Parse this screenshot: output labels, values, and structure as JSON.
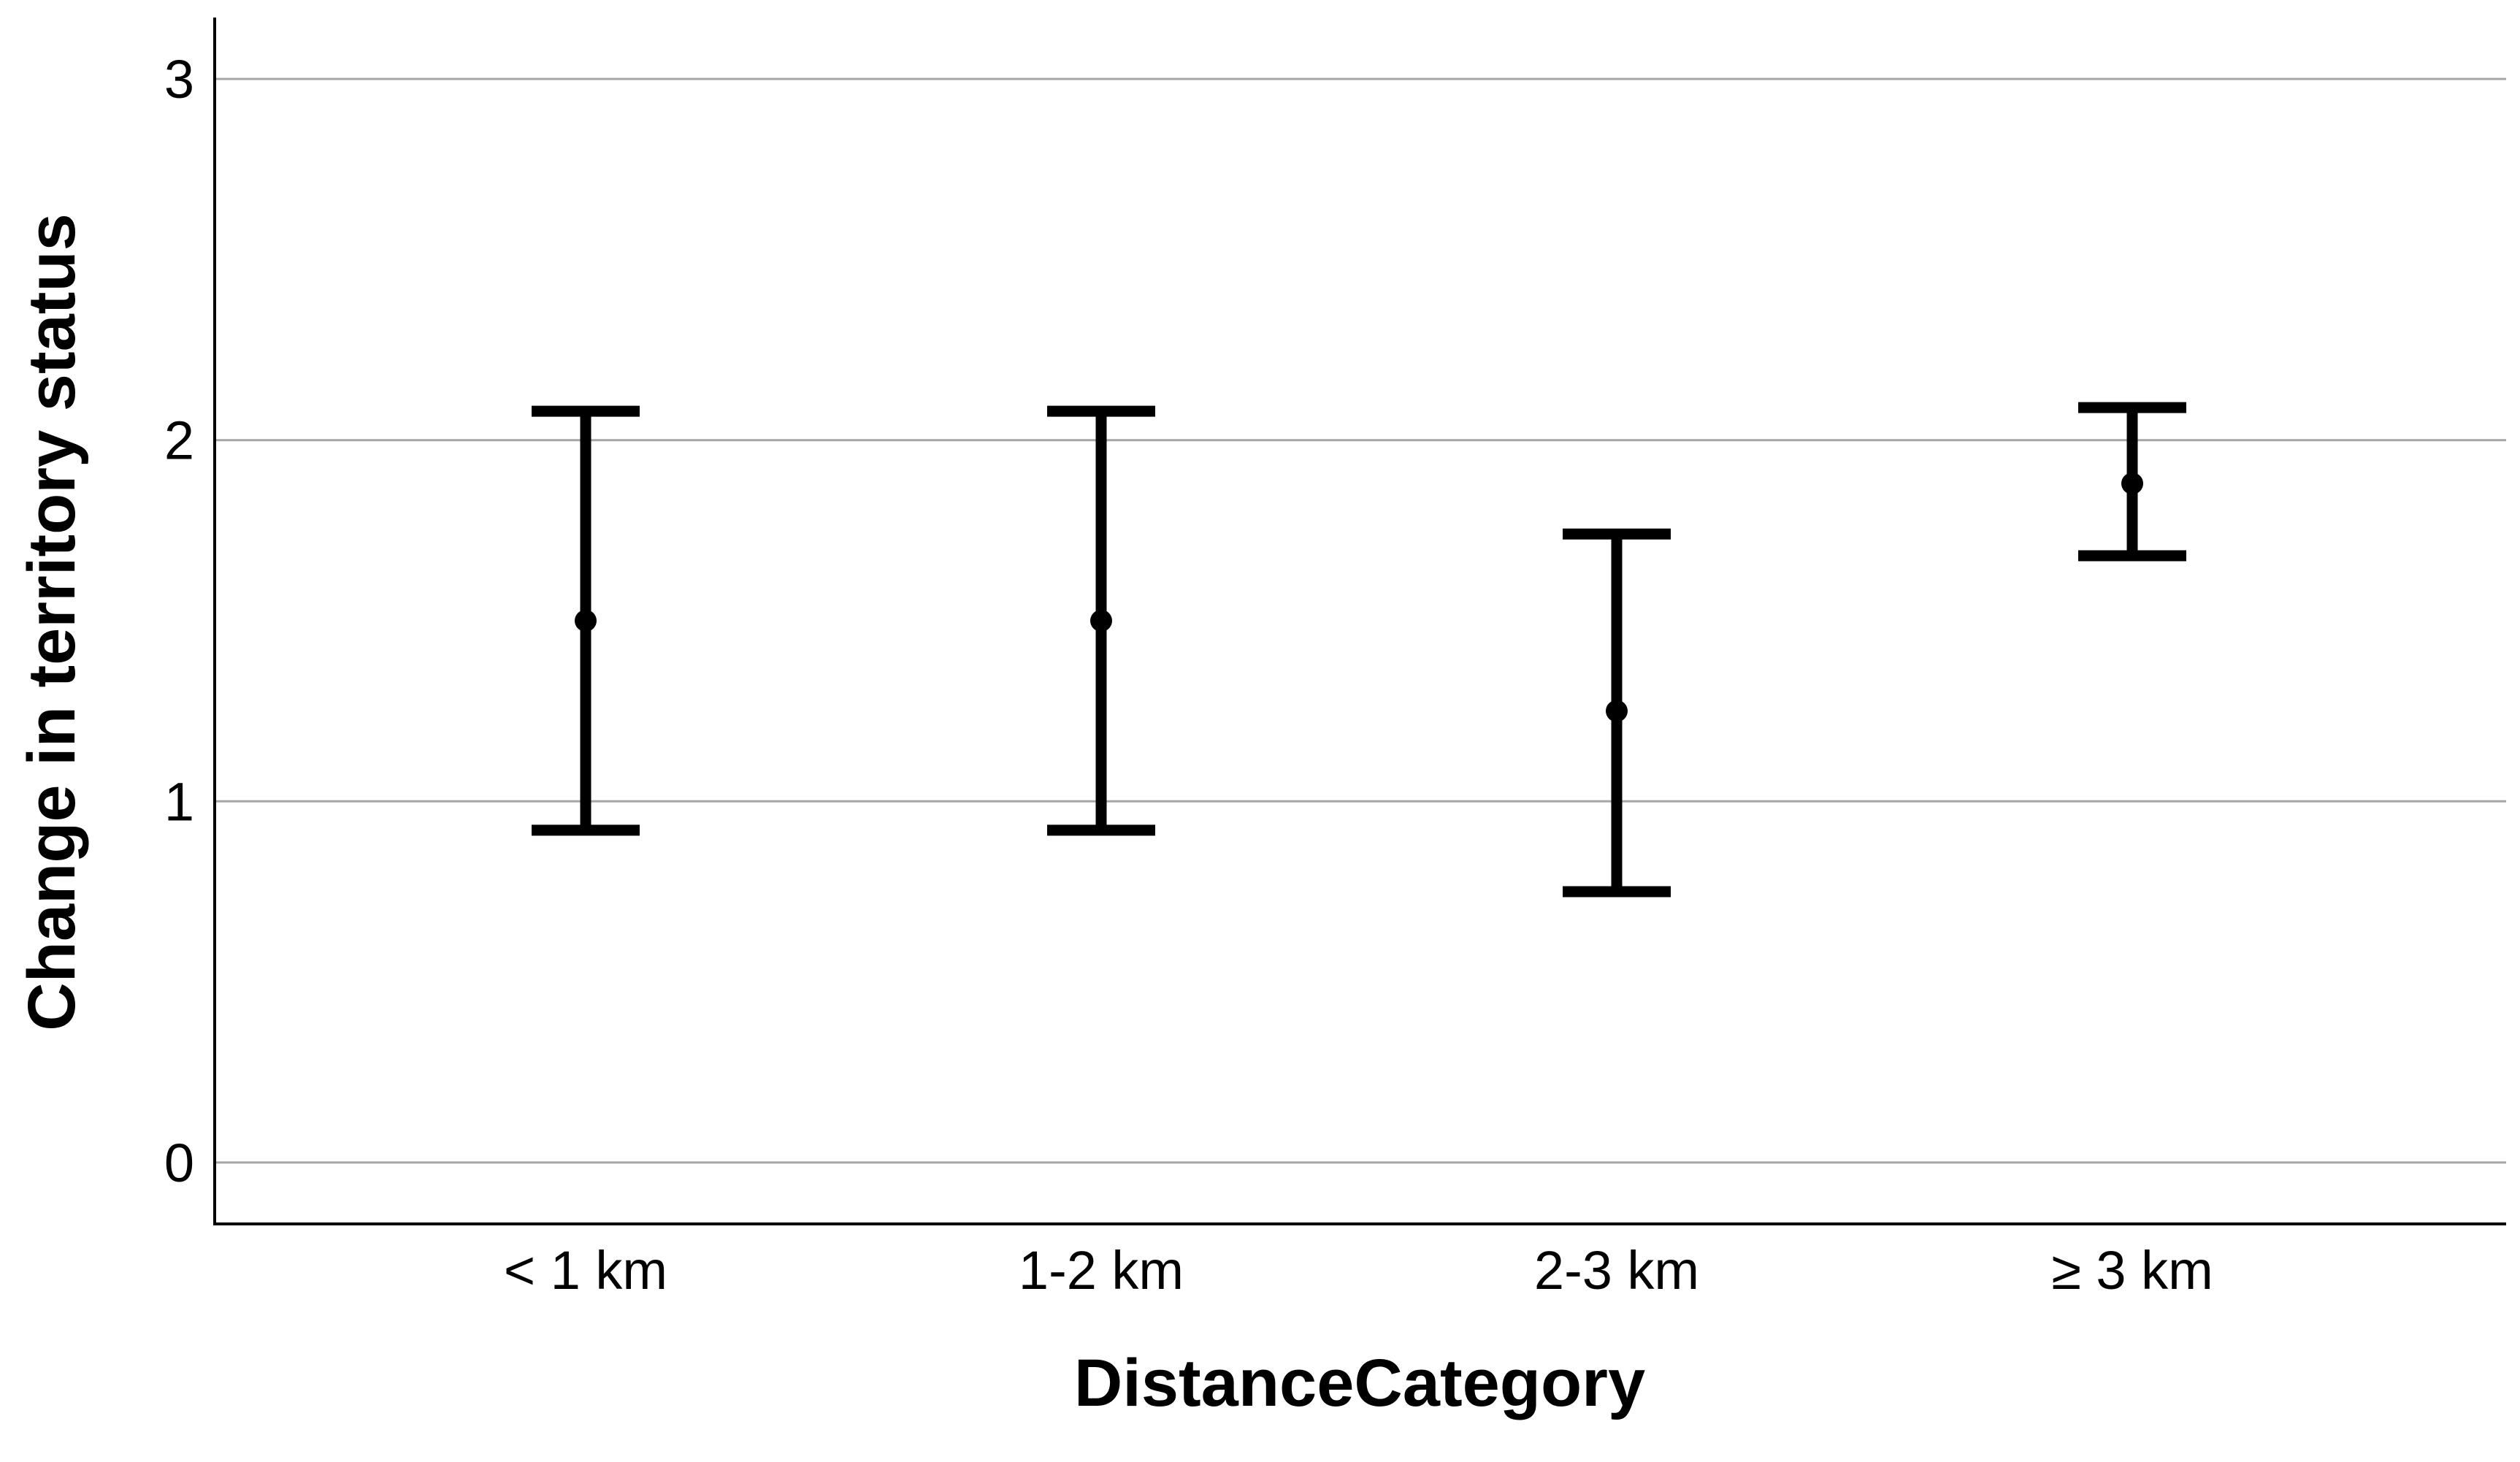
{
  "chart_data": {
    "type": "errorbar",
    "title": "",
    "xlabel": "DistanceCategory",
    "ylabel": "Change in territory status",
    "categories": [
      "< 1 km",
      "1-2 km",
      "2-3 km",
      "≥ 3 km"
    ],
    "series": [
      {
        "means": [
          1.5,
          1.5,
          1.25,
          1.88
        ],
        "lower": [
          0.92,
          0.92,
          0.75,
          1.68
        ],
        "upper": [
          2.08,
          2.08,
          1.74,
          2.09
        ]
      }
    ],
    "ylim": [
      -0.17,
      3.17
    ],
    "yticks": [
      0,
      1,
      2,
      3
    ],
    "grid": true,
    "legend": "none",
    "colors": {
      "marks": "#000000",
      "grid": "#a6a6a6",
      "axis": "#000000"
    }
  }
}
